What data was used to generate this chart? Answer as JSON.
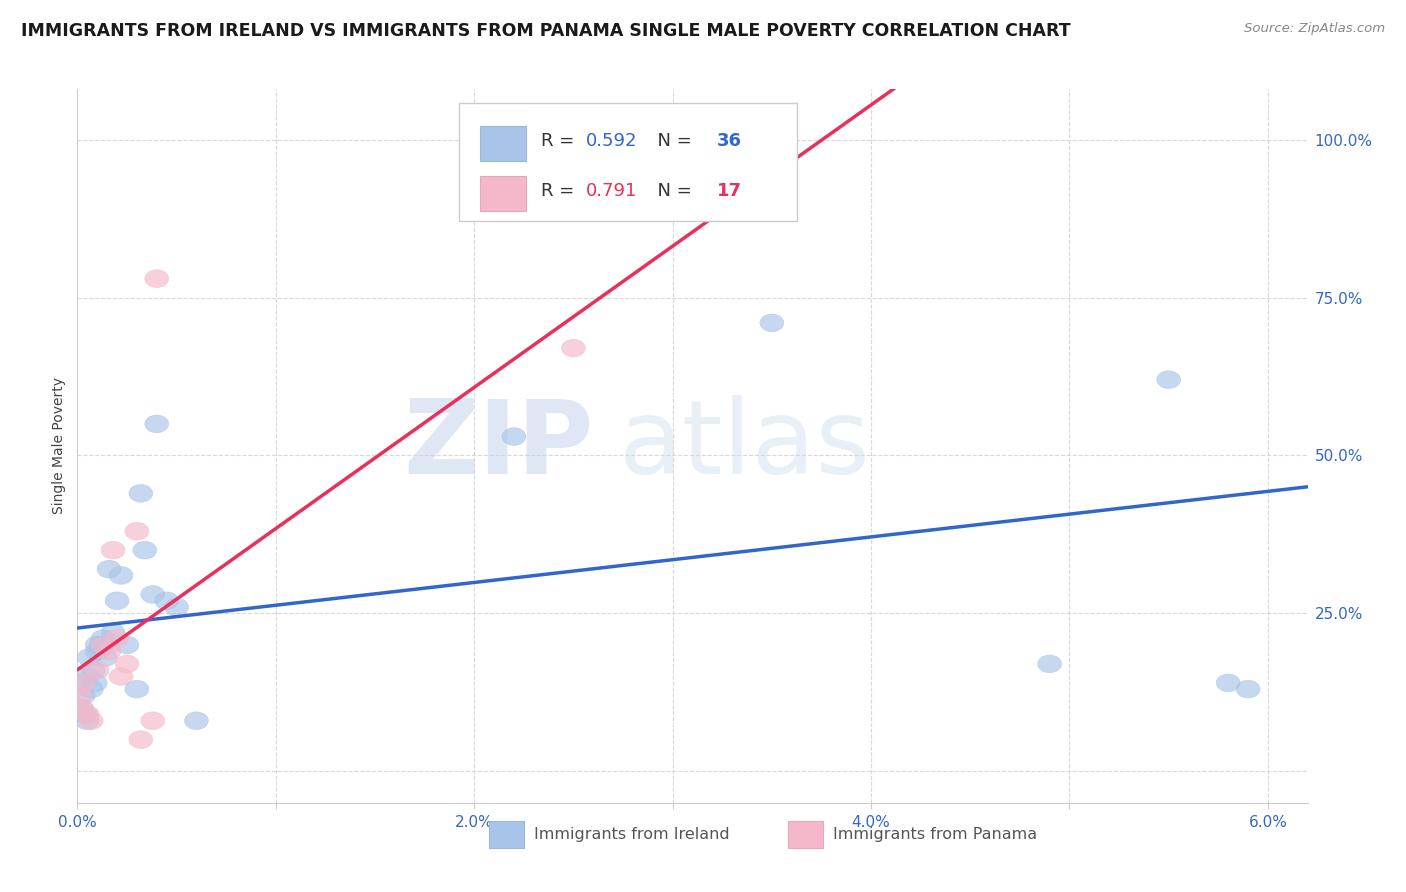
{
  "title": "IMMIGRANTS FROM IRELAND VS IMMIGRANTS FROM PANAMA SINGLE MALE POVERTY CORRELATION CHART",
  "source": "Source: ZipAtlas.com",
  "ylabel": "Single Male Poverty",
  "xlim": [
    0.0,
    0.062
  ],
  "ylim": [
    -0.05,
    1.08
  ],
  "xticks": [
    0.0,
    0.01,
    0.02,
    0.03,
    0.04,
    0.05,
    0.06
  ],
  "xtick_labels": [
    "0.0%",
    "",
    "2.0%",
    "",
    "4.0%",
    "",
    "6.0%"
  ],
  "yticks": [
    0.0,
    0.25,
    0.5,
    0.75,
    1.0
  ],
  "ytick_labels": [
    "",
    "25.0%",
    "50.0%",
    "75.0%",
    "100.0%"
  ],
  "ireland_color": "#a8c4e8",
  "panama_color": "#f4b8ca",
  "ireland_line_color": "#3366cc",
  "panama_line_color": "#e8305a",
  "ireland_R": 0.592,
  "ireland_N": 36,
  "panama_R": 0.791,
  "panama_N": 17,
  "watermark_zip": "ZIP",
  "watermark_atlas": "atlas",
  "ireland_x": [
    0.0001,
    0.0002,
    0.0003,
    0.0004,
    0.0005,
    0.0005,
    0.0006,
    0.0007,
    0.0008,
    0.0009,
    0.001,
    0.001,
    0.0012,
    0.0013,
    0.0014,
    0.0015,
    0.0016,
    0.0018,
    0.002,
    0.0022,
    0.0025,
    0.003,
    0.0032,
    0.0034,
    0.0038,
    0.004,
    0.0045,
    0.005,
    0.006,
    0.022,
    0.026,
    0.035,
    0.049,
    0.055,
    0.058,
    0.059
  ],
  "ireland_y": [
    0.14,
    0.1,
    0.12,
    0.09,
    0.08,
    0.15,
    0.18,
    0.13,
    0.16,
    0.14,
    0.19,
    0.2,
    0.2,
    0.21,
    0.18,
    0.2,
    0.32,
    0.22,
    0.27,
    0.31,
    0.2,
    0.13,
    0.44,
    0.35,
    0.28,
    0.55,
    0.27,
    0.26,
    0.08,
    0.53,
    1.01,
    0.71,
    0.17,
    0.62,
    0.14,
    0.13
  ],
  "panama_x": [
    0.0001,
    0.0002,
    0.0003,
    0.0005,
    0.0007,
    0.001,
    0.0013,
    0.0016,
    0.0018,
    0.002,
    0.0022,
    0.0025,
    0.003,
    0.0032,
    0.0038,
    0.004,
    0.025
  ],
  "panama_y": [
    0.12,
    0.1,
    0.14,
    0.09,
    0.08,
    0.16,
    0.2,
    0.19,
    0.35,
    0.21,
    0.15,
    0.17,
    0.38,
    0.05,
    0.08,
    0.78,
    0.67
  ],
  "background_color": "#ffffff",
  "grid_color": "#d8d8d8",
  "title_fontsize": 12.5,
  "axis_label_fontsize": 10,
  "tick_fontsize": 11,
  "legend_fontsize": 13
}
